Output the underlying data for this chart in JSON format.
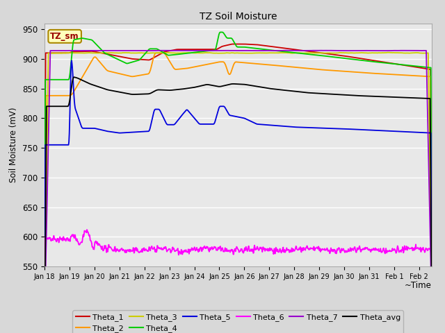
{
  "title": "TZ Soil Moisture",
  "ylabel": "Soil Moisture (mV)",
  "xlabel": "~Time",
  "ylim": [
    550,
    960
  ],
  "yticks": [
    550,
    600,
    650,
    700,
    750,
    800,
    850,
    900,
    950
  ],
  "xtick_labels": [
    "Jan 18",
    "Jan 19",
    "Jan 20",
    "Jan 21",
    "Jan 22",
    "Jan 23",
    "Jan 24",
    "Jan 25",
    "Jan 26",
    "Jan 27",
    "Jan 28",
    "Jan 29",
    "Jan 30",
    "Jan 31",
    "Feb 1",
    "Feb 2"
  ],
  "bg_color": "#e8e8e8",
  "grid_color": "#ffffff",
  "fig_bg_color": "#d8d8d8",
  "legend_label": "TZ_sm",
  "series_colors": {
    "Theta_1": "#cc0000",
    "Theta_2": "#ff9900",
    "Theta_3": "#cccc00",
    "Theta_4": "#00cc00",
    "Theta_5": "#0000dd",
    "Theta_6": "#ff00ff",
    "Theta_7": "#9900cc",
    "Theta_avg": "#000000"
  }
}
